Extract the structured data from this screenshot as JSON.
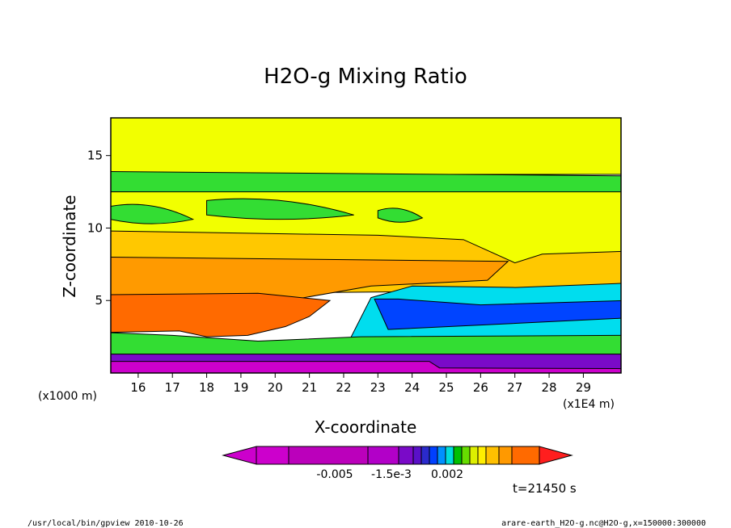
{
  "chart_data": {
    "type": "contour",
    "title": "H2O-g Mixing Ratio",
    "xlabel": "X-coordinate",
    "ylabel": "Z-coordinate",
    "x_unit_left": "(x1000 m)",
    "x_unit_right": "(x1E4 m)",
    "xlim": [
      15.2,
      30.1
    ],
    "ylim": [
      0,
      17.6
    ],
    "x_ticks": [
      16,
      17,
      18,
      19,
      20,
      21,
      22,
      23,
      24,
      25,
      26,
      27,
      28,
      29
    ],
    "y_ticks": [
      5,
      10,
      15
    ],
    "time_label": "t=21450 s",
    "colorbar": {
      "tick_labels": [
        "-0.005",
        "-1.5e-3",
        "0.002"
      ],
      "colors": [
        "#cc00cc",
        "#bb00bb",
        "#b200c8",
        "#7a0ac8",
        "#5a10c8",
        "#2a2acc",
        "#0040ff",
        "#0090ff",
        "#00dddd",
        "#00c000",
        "#66dd00",
        "#ddee00",
        "#ffee00",
        "#ffc000",
        "#ff9900",
        "#ff6a00",
        "#ff1e1e"
      ]
    },
    "layers": [
      {
        "name": "upper-dry",
        "color": "#f2ff00",
        "z": [
          17.6,
          13.9
        ]
      },
      {
        "name": "moist-band",
        "color": "#33dd33",
        "z": [
          13.9,
          12.5
        ]
      },
      {
        "name": "yellow-mid",
        "color": "#f2ff00",
        "z": [
          12.5,
          9.8
        ]
      },
      {
        "name": "orange-light",
        "color": "#ffc800",
        "z": [
          9.8,
          8.0
        ]
      },
      {
        "name": "orange",
        "color": "#ff9a00",
        "z": [
          8.0,
          5.4
        ]
      },
      {
        "name": "red-orange",
        "color": "#ff6a00",
        "z": [
          5.4,
          2.8
        ]
      },
      {
        "name": "cyan-east",
        "color": "#00ddee",
        "z": [
          6.0,
          2.8
        ]
      },
      {
        "name": "blue-east",
        "color": "#0044ff",
        "z": [
          5.0,
          3.0
        ]
      },
      {
        "name": "mixed-low",
        "color": "#33dd33",
        "z": [
          2.8,
          1.3
        ]
      },
      {
        "name": "surface-purple",
        "color": "#7a0ac8",
        "z": [
          1.3,
          0
        ]
      },
      {
        "name": "surface-magenta",
        "color": "#cc00cc",
        "z": [
          0.8,
          0
        ]
      }
    ]
  },
  "footer": {
    "left": "/usr/local/bin/gpview  2010-10-26",
    "right": "arare-earth_H2O-g.nc@H2O-g,x=150000:300000"
  }
}
